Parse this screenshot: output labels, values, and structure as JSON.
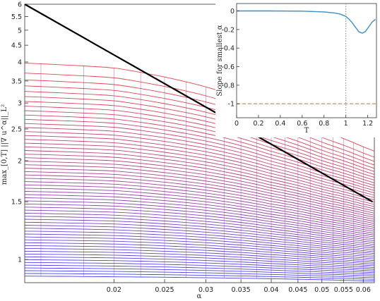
{
  "chart_data": [
    {
      "type": "line",
      "xscale": "log",
      "yscale": "log",
      "xlabel": "α",
      "ylabel": "max_[0,T] ||∇ u^α||_L²",
      "xlim": [
        0.0135,
        0.063
      ],
      "ylim": [
        0.85,
        6
      ],
      "x_ticks": [
        0.02,
        0.025,
        0.03,
        0.035,
        0.04,
        0.045,
        0.05,
        0.055,
        0.06
      ],
      "x_tick_labels": [
        "0.02",
        "0.025",
        "0.03",
        "0.035",
        "0.04",
        "0.045",
        "0.05",
        "0.055",
        "0.06"
      ],
      "y_ticks": [
        1,
        1.5,
        2,
        2.5,
        3,
        3.5,
        4,
        4.5,
        5,
        5.5,
        6
      ],
      "y_tick_labels": [
        "1",
        "1.5",
        "2",
        "2.5",
        "3",
        "3.5",
        "4",
        "4.5",
        "5",
        "5.5",
        "6"
      ],
      "reference_line": {
        "x": [
          0.0135,
          0.0625
        ],
        "y": [
          6.0,
          1.5
        ],
        "color": "#000000"
      },
      "family": {
        "count": 60,
        "color_top": "#e8262a",
        "color_bottom": "#1f1fff",
        "top_curve": {
          "x": [
            0.0135,
            0.02,
            0.03,
            0.04,
            0.05,
            0.0625
          ],
          "y": [
            3.97,
            3.84,
            3.36,
            2.85,
            2.47,
            2.14
          ]
        },
        "bottom_curve": {
          "x": [
            0.0135,
            0.0625
          ],
          "y": [
            0.89,
            0.86
          ]
        }
      }
    },
    {
      "type": "line",
      "xlabel": "T",
      "ylabel": "Slope for smallest α",
      "xlim": [
        0,
        1.28
      ],
      "ylim": [
        -1.15,
        0.08
      ],
      "x_ticks": [
        0,
        0.2,
        0.4,
        0.6,
        0.8,
        1,
        1.2
      ],
      "x_tick_labels": [
        "0",
        "0.2",
        "0.4",
        "0.6",
        "0.8",
        "1",
        "1.2"
      ],
      "y_ticks": [
        0,
        -0.2,
        -0.4,
        -0.6,
        -0.8,
        -1
      ],
      "y_tick_labels": [
        "0",
        "-0.2",
        "-0.4",
        "-0.6",
        "-0.8",
        "-1"
      ],
      "series": [
        {
          "color": "#3b8fc7",
          "x": [
            0,
            0.3,
            0.6,
            0.8,
            0.9,
            0.95,
            1.0,
            1.03,
            1.06,
            1.09,
            1.12,
            1.15,
            1.18,
            1.21,
            1.24,
            1.27
          ],
          "y": [
            0,
            0,
            -0.002,
            -0.01,
            -0.022,
            -0.035,
            -0.06,
            -0.09,
            -0.13,
            -0.18,
            -0.225,
            -0.24,
            -0.22,
            -0.17,
            -0.12,
            -0.09
          ]
        }
      ],
      "hline": {
        "y": -1,
        "color": "#ee8844",
        "style": "dashed"
      },
      "vline": {
        "x": 1,
        "color": "#888888",
        "style": "dotted"
      }
    }
  ]
}
